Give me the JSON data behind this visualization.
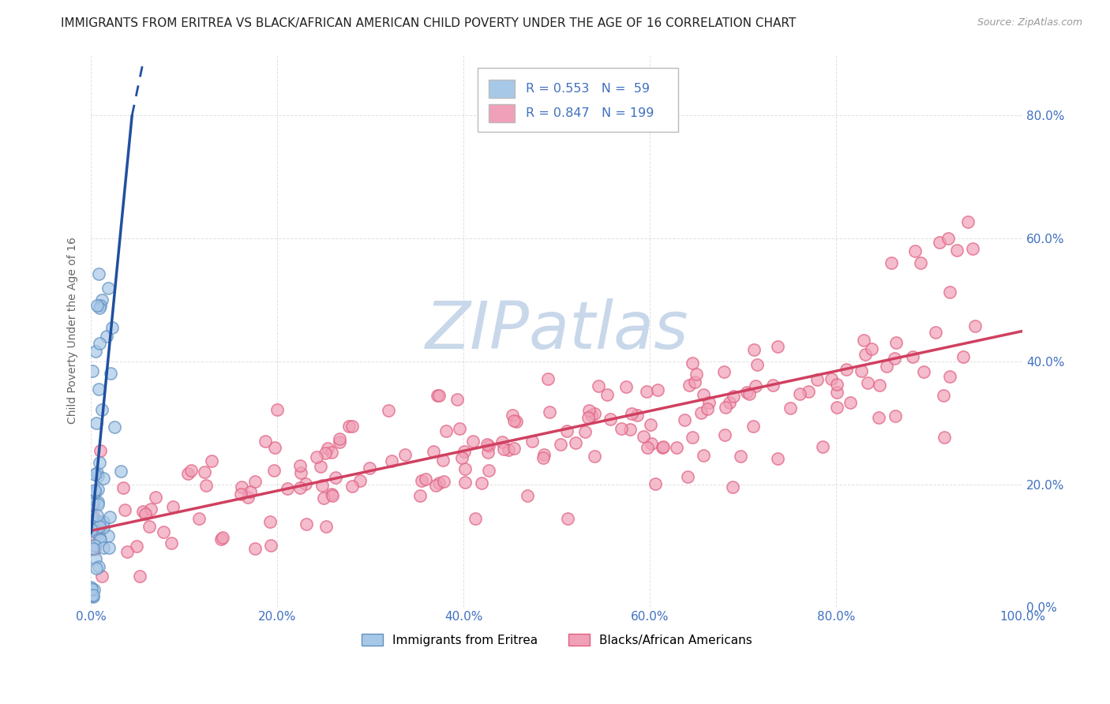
{
  "title": "IMMIGRANTS FROM ERITREA VS BLACK/AFRICAN AMERICAN CHILD POVERTY UNDER THE AGE OF 16 CORRELATION CHART",
  "source": "Source: ZipAtlas.com",
  "ylabel": "Child Poverty Under the Age of 16",
  "xmin": 0.0,
  "xmax": 1.0,
  "ymin": 0.0,
  "ymax": 0.9,
  "yticks": [
    0.0,
    0.2,
    0.4,
    0.6,
    0.8
  ],
  "yticklabels": [
    "0.0%",
    "20.0%",
    "40.0%",
    "60.0%",
    "80.0%"
  ],
  "xticks": [
    0.0,
    0.2,
    0.4,
    0.6,
    0.8,
    1.0
  ],
  "xticklabels": [
    "0.0%",
    "20.0%",
    "40.0%",
    "60.0%",
    "80.0%",
    "100.0%"
  ],
  "legend_R_labels": [
    "R = 0.553   N =  59",
    "R = 0.847   N = 199"
  ],
  "legend_labels": [
    "Immigrants from Eritrea",
    "Blacks/African Americans"
  ],
  "blue_color": "#a8c8e8",
  "pink_color": "#f0a0b8",
  "blue_edge_color": "#6090c0",
  "pink_edge_color": "#e06080",
  "blue_line_color": "#2050a0",
  "pink_line_color": "#d04060",
  "blue_legend_color": "#a8c8e8",
  "pink_legend_color": "#f0a0b8",
  "tick_color": "#4070c0",
  "grid_color": "#cccccc",
  "background_color": "#ffffff",
  "title_fontsize": 11,
  "axis_fontsize": 10,
  "tick_fontsize": 11,
  "watermark": "ZIPatlas",
  "watermark_color": "#c8d8ea",
  "watermark_fontsize": 60
}
